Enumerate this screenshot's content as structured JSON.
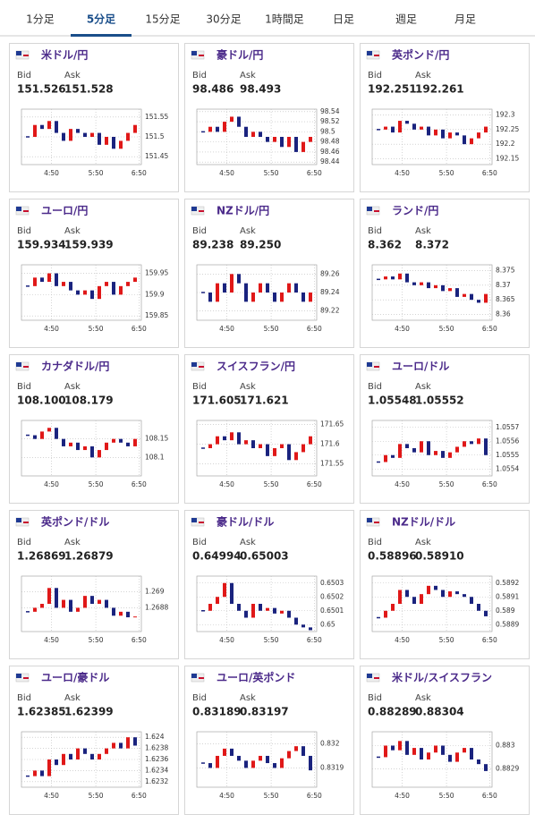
{
  "tabs": [
    "1分足",
    "5分足",
    "15分足",
    "30分足",
    "1時間足",
    "日足",
    "週足",
    "月足"
  ],
  "active_tab": 1,
  "labels": {
    "bid": "Bid",
    "ask": "Ask"
  },
  "xticks": [
    "4:50",
    "5:50",
    "6:50"
  ],
  "panels": [
    {
      "name": "米ドル/円",
      "bid": "151.526",
      "ask": "151.528",
      "ylim": [
        151.43,
        151.57
      ],
      "yticks": [
        151.45,
        151.5,
        151.55
      ],
      "closes": [
        151.5,
        151.53,
        151.52,
        151.54,
        151.51,
        151.49,
        151.52,
        151.51,
        151.5,
        151.51,
        151.48,
        151.5,
        151.47,
        151.49,
        151.51,
        151.53
      ]
    },
    {
      "name": "豪ドル/円",
      "bid": "98.486",
      "ask": "98.493",
      "ylim": [
        98.435,
        98.545
      ],
      "yticks": [
        98.44,
        98.46,
        98.48,
        98.5,
        98.52,
        98.54
      ],
      "closes": [
        98.5,
        98.51,
        98.5,
        98.52,
        98.53,
        98.51,
        98.49,
        98.5,
        98.49,
        98.48,
        98.49,
        98.47,
        98.49,
        98.46,
        98.48,
        98.49
      ]
    },
    {
      "name": "英ポンド/円",
      "bid": "192.251",
      "ask": "192.261",
      "ylim": [
        192.13,
        192.32
      ],
      "yticks": [
        192.15,
        192.2,
        192.25,
        192.3
      ],
      "closes": [
        192.25,
        192.26,
        192.24,
        192.28,
        192.27,
        192.25,
        192.26,
        192.23,
        192.25,
        192.22,
        192.24,
        192.23,
        192.2,
        192.22,
        192.24,
        192.26
      ]
    },
    {
      "name": "ユーロ/円",
      "bid": "159.934",
      "ask": "159.939",
      "ylim": [
        159.84,
        159.97
      ],
      "yticks": [
        159.85,
        159.9,
        159.95
      ],
      "closes": [
        159.92,
        159.94,
        159.93,
        159.95,
        159.92,
        159.93,
        159.91,
        159.9,
        159.91,
        159.89,
        159.92,
        159.93,
        159.9,
        159.92,
        159.93,
        159.94
      ]
    },
    {
      "name": "NZドル/円",
      "bid": "89.238",
      "ask": "89.250",
      "ylim": [
        89.21,
        89.27
      ],
      "yticks": [
        89.22,
        89.24,
        89.26
      ],
      "closes": [
        89.24,
        89.23,
        89.25,
        89.24,
        89.26,
        89.25,
        89.23,
        89.24,
        89.25,
        89.24,
        89.23,
        89.24,
        89.25,
        89.24,
        89.23,
        89.24
      ]
    },
    {
      "name": "ランド/円",
      "bid": "8.362",
      "ask": "8.372",
      "ylim": [
        8.358,
        8.377
      ],
      "yticks": [
        8.36,
        8.365,
        8.37,
        8.375
      ],
      "closes": [
        8.372,
        8.373,
        8.372,
        8.374,
        8.371,
        8.37,
        8.371,
        8.369,
        8.37,
        8.368,
        8.369,
        8.366,
        8.367,
        8.365,
        8.364,
        8.367
      ]
    },
    {
      "name": "カナダドル/円",
      "bid": "108.100",
      "ask": "108.179",
      "ylim": [
        108.05,
        108.2
      ],
      "yticks": [
        108.1,
        108.15
      ],
      "closes": [
        108.16,
        108.15,
        108.17,
        108.18,
        108.15,
        108.13,
        108.14,
        108.12,
        108.13,
        108.1,
        108.12,
        108.14,
        108.15,
        108.14,
        108.13,
        108.15
      ]
    },
    {
      "name": "スイスフラン/円",
      "bid": "171.605",
      "ask": "171.621",
      "ylim": [
        171.52,
        171.66
      ],
      "yticks": [
        171.55,
        171.6,
        171.65
      ],
      "closes": [
        171.59,
        171.6,
        171.62,
        171.61,
        171.63,
        171.6,
        171.61,
        171.59,
        171.6,
        171.57,
        171.59,
        171.6,
        171.56,
        171.58,
        171.6,
        171.62
      ]
    },
    {
      "name": "ユーロ/ドル",
      "bid": "1.05548",
      "ask": "1.05552",
      "ylim": [
        1.05535,
        1.05575
      ],
      "yticks": [
        1.0554,
        1.0555,
        1.0556,
        1.0557
      ],
      "closes": [
        1.05545,
        1.0555,
        1.05548,
        1.05558,
        1.05555,
        1.05552,
        1.0556,
        1.0555,
        1.05553,
        1.05548,
        1.05552,
        1.05556,
        1.0556,
        1.05558,
        1.05562,
        1.0555
      ]
    },
    {
      "name": "英ポンド/ドル",
      "bid": "1.26869",
      "ask": "1.26879",
      "ylim": [
        1.2685,
        1.2692
      ],
      "yticks": [
        1.2688,
        1.269
      ],
      "closes": [
        1.26875,
        1.2688,
        1.26885,
        1.26905,
        1.2688,
        1.2689,
        1.26875,
        1.2688,
        1.26895,
        1.26885,
        1.2689,
        1.2688,
        1.2687,
        1.26875,
        1.26868,
        1.26869
      ]
    },
    {
      "name": "豪ドル/ドル",
      "bid": "0.64994",
      "ask": "0.65003",
      "ylim": [
        0.64995,
        0.65035
      ],
      "yticks": [
        0.65,
        0.6501,
        0.6502,
        0.6503
      ],
      "closes": [
        0.6501,
        0.65015,
        0.6502,
        0.6503,
        0.65015,
        0.6501,
        0.65005,
        0.65015,
        0.6501,
        0.65012,
        0.65008,
        0.6501,
        0.65005,
        0.65,
        0.64998,
        0.64996
      ]
    },
    {
      "name": "NZドル/ドル",
      "bid": "0.58896",
      "ask": "0.58910",
      "ylim": [
        0.58885,
        0.58925
      ],
      "yticks": [
        0.5889,
        0.589,
        0.5891,
        0.5892
      ],
      "closes": [
        0.58895,
        0.589,
        0.58905,
        0.58915,
        0.5891,
        0.58905,
        0.58912,
        0.58918,
        0.58915,
        0.5891,
        0.58914,
        0.58912,
        0.5891,
        0.58905,
        0.589,
        0.58896
      ]
    },
    {
      "name": "ユーロ/豪ドル",
      "bid": "1.62385",
      "ask": "1.62399",
      "ylim": [
        1.6231,
        1.6241
      ],
      "yticks": [
        1.6232,
        1.6234,
        1.6236,
        1.6238,
        1.624
      ],
      "closes": [
        1.6233,
        1.6234,
        1.6233,
        1.6236,
        1.6235,
        1.6237,
        1.6236,
        1.6238,
        1.6237,
        1.6236,
        1.6237,
        1.6238,
        1.6239,
        1.6238,
        1.624,
        1.62385
      ]
    },
    {
      "name": "ユーロ/英ポンド",
      "bid": "0.83189",
      "ask": "0.83197",
      "ylim": [
        0.83182,
        0.83205
      ],
      "yticks": [
        0.8319,
        0.832
      ],
      "closes": [
        0.83192,
        0.8319,
        0.83195,
        0.83198,
        0.83195,
        0.83193,
        0.8319,
        0.83193,
        0.83195,
        0.83192,
        0.8319,
        0.83194,
        0.83197,
        0.83199,
        0.83195,
        0.83189
      ]
    },
    {
      "name": "米ドル/スイスフラン",
      "bid": "0.88289",
      "ask": "0.88304",
      "ylim": [
        0.88282,
        0.88306
      ],
      "yticks": [
        0.8829,
        0.883
      ],
      "closes": [
        0.88295,
        0.883,
        0.88298,
        0.88302,
        0.88296,
        0.88299,
        0.88294,
        0.88297,
        0.883,
        0.88296,
        0.88293,
        0.88297,
        0.88299,
        0.88294,
        0.88292,
        0.88289
      ]
    }
  ]
}
